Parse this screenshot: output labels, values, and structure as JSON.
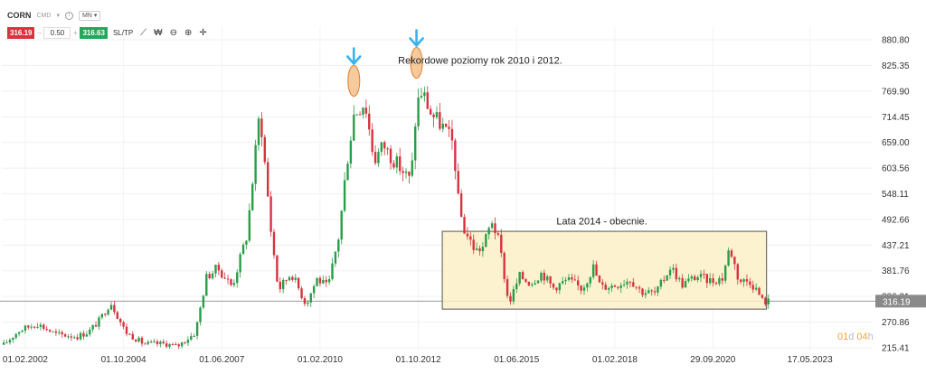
{
  "toolbar": {
    "symbol": "CORN",
    "class": "CMD",
    "timeframe": "MN",
    "sell_price": "316.19",
    "quantity": "0.50",
    "buy_price": "316.63",
    "sltp_label": "SL/TP",
    "minus": "–",
    "plus": "+",
    "dropdown": "▾",
    "info": "i"
  },
  "current_price_label": "316.19",
  "countdown": {
    "days": "01",
    "d": "d",
    "hours": "04",
    "h": "h"
  },
  "chart_data": {
    "type": "candlestick",
    "y_ticks": [
      "880.80",
      "825.35",
      "769.90",
      "714.45",
      "659.00",
      "603.56",
      "548.11",
      "492.66",
      "437.21",
      "381.76",
      "326.31",
      "270.86",
      "215.41"
    ],
    "x_ticks": [
      "01.02.2002",
      "01.10.2004",
      "01.06.2007",
      "01.02.2010",
      "01.10.2012",
      "01.06.2015",
      "01.02.2018",
      "29.09.2020",
      "17.05.2023"
    ],
    "ylim": [
      215.41,
      880.8
    ],
    "current_price": 316.19,
    "annotations": [
      {
        "text": "Rekordowe poziomy rok 2010 i 2012.",
        "at": [
          2012.2,
          829
        ]
      },
      {
        "text": "Lata 2014 - obecnie.",
        "at": [
          2016.5,
          482
        ]
      }
    ],
    "highlight_box": {
      "x": [
        2013.4,
        2022.2
      ],
      "y": [
        299,
        467
      ]
    },
    "markers": [
      {
        "type": "arrow-ellipse",
        "x": 2011.0,
        "y": 792
      },
      {
        "type": "arrow-ellipse",
        "x": 2012.7,
        "y": 831
      }
    ],
    "anchors": [
      [
        2001.5,
        222
      ],
      [
        2001.9,
        252
      ],
      [
        2002.4,
        268
      ],
      [
        2002.9,
        245
      ],
      [
        2003.5,
        240
      ],
      [
        2003.8,
        250
      ],
      [
        2004.1,
        275
      ],
      [
        2004.4,
        315
      ],
      [
        2004.8,
        250
      ],
      [
        2005.3,
        224
      ],
      [
        2005.9,
        224
      ],
      [
        2006.2,
        218
      ],
      [
        2006.7,
        248
      ],
      [
        2007.0,
        368
      ],
      [
        2007.3,
        388
      ],
      [
        2007.7,
        348
      ],
      [
        2008.1,
        460
      ],
      [
        2008.45,
        730
      ],
      [
        2008.75,
        470
      ],
      [
        2008.95,
        340
      ],
      [
        2009.3,
        378
      ],
      [
        2009.7,
        310
      ],
      [
        2010.0,
        365
      ],
      [
        2010.3,
        345
      ],
      [
        2010.6,
        460
      ],
      [
        2010.8,
        610
      ],
      [
        2011.0,
        720
      ],
      [
        2011.3,
        748
      ],
      [
        2011.55,
        620
      ],
      [
        2011.8,
        655
      ],
      [
        2012.0,
        630
      ],
      [
        2012.3,
        600
      ],
      [
        2012.55,
        575
      ],
      [
        2012.7,
        740
      ],
      [
        2012.85,
        770
      ],
      [
        2013.1,
        720
      ],
      [
        2013.4,
        695
      ],
      [
        2013.7,
        655
      ],
      [
        2013.85,
        520
      ],
      [
        2014.0,
        470
      ],
      [
        2014.3,
        425
      ],
      [
        2014.5,
        433
      ],
      [
        2014.75,
        490
      ],
      [
        2014.95,
        440
      ],
      [
        2015.2,
        310
      ],
      [
        2015.5,
        370
      ],
      [
        2015.8,
        355
      ],
      [
        2016.1,
        378
      ],
      [
        2016.4,
        345
      ],
      [
        2016.8,
        362
      ],
      [
        2017.2,
        343
      ],
      [
        2017.5,
        390
      ],
      [
        2017.7,
        346
      ],
      [
        2018.1,
        351
      ],
      [
        2018.5,
        364
      ],
      [
        2018.8,
        337
      ],
      [
        2019.2,
        333
      ],
      [
        2019.6,
        392
      ],
      [
        2019.9,
        352
      ],
      [
        2020.3,
        370
      ],
      [
        2020.7,
        360
      ],
      [
        2021.0,
        366
      ],
      [
        2021.2,
        434
      ],
      [
        2021.45,
        360
      ],
      [
        2021.75,
        360
      ],
      [
        2021.95,
        338
      ],
      [
        2022.1,
        315
      ],
      [
        2022.3,
        316
      ]
    ]
  }
}
